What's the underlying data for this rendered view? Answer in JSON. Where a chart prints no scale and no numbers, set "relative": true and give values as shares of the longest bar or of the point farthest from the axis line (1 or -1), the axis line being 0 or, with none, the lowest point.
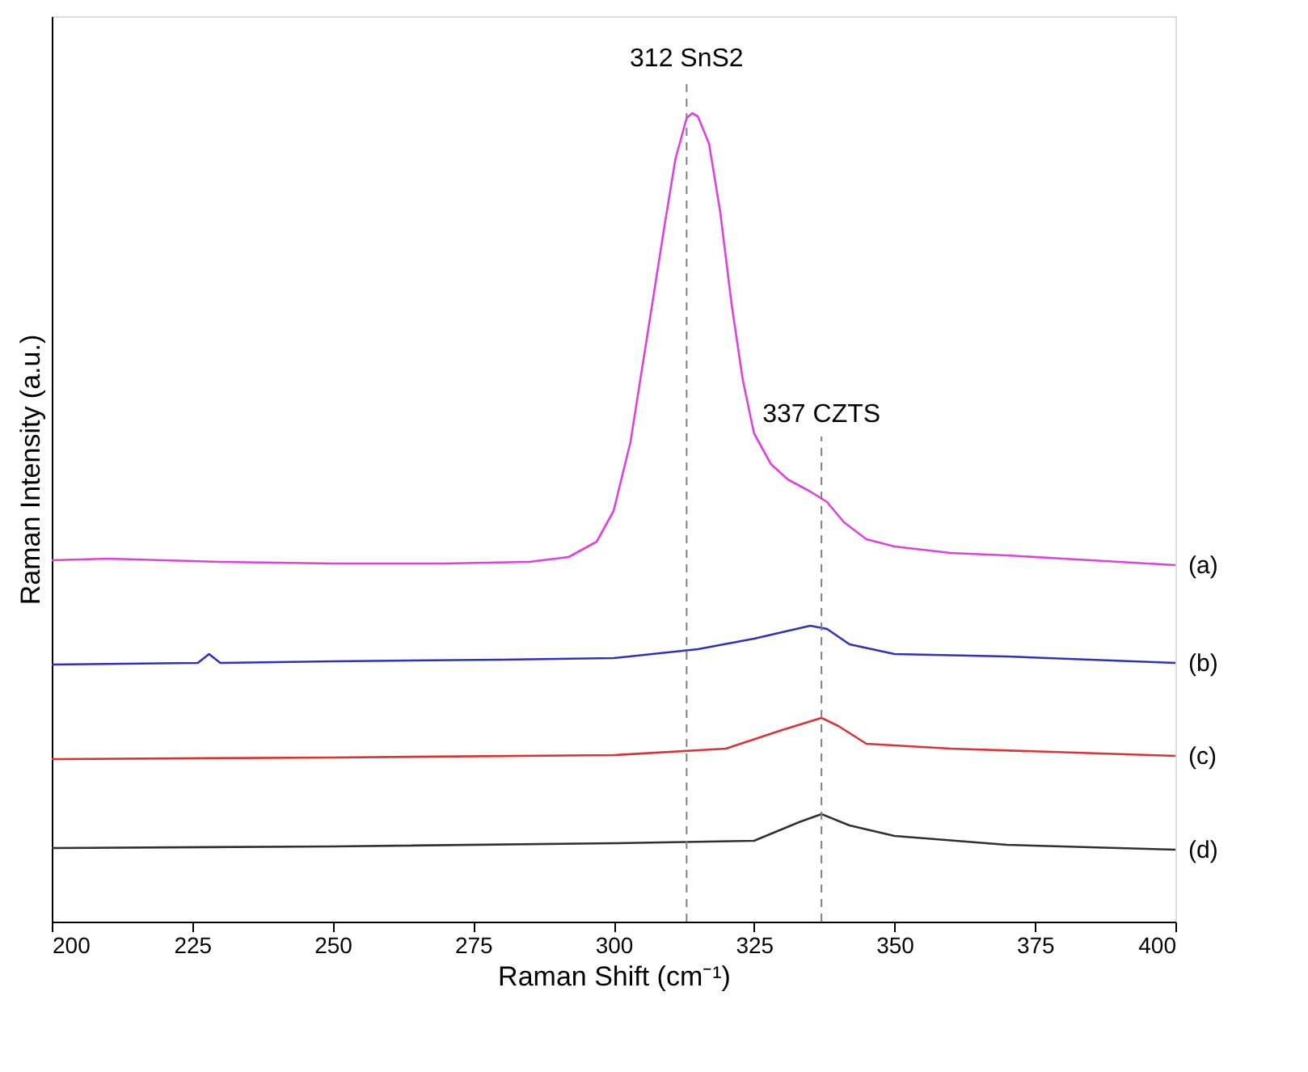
{
  "chart_data": {
    "type": "line",
    "relative": true,
    "xlabel": "Raman Shift (cm⁻¹)",
    "ylabel": "Raman Intensity (a.u.)",
    "xlim": [
      200,
      400
    ],
    "xticks": [
      200,
      225,
      250,
      275,
      300,
      325,
      350,
      375,
      400
    ],
    "grid": false,
    "marker": "none",
    "line_style": "solid",
    "x": [
      200,
      210,
      230,
      250,
      270,
      285,
      292,
      297,
      300,
      303,
      306,
      309,
      311,
      313,
      314,
      315,
      317,
      319,
      321,
      323,
      325,
      328,
      331,
      335,
      338,
      341,
      345,
      350,
      360,
      370,
      380,
      390,
      400
    ],
    "series": [
      {
        "name": "(a)",
        "color": "#e040e0",
        "values": [
          0.447,
          0.449,
          0.445,
          0.443,
          0.443,
          0.445,
          0.451,
          0.47,
          0.508,
          0.593,
          0.725,
          0.858,
          0.943,
          0.994,
          1.0,
          0.996,
          0.962,
          0.877,
          0.764,
          0.67,
          0.604,
          0.566,
          0.547,
          0.532,
          0.519,
          0.494,
          0.473,
          0.464,
          0.456,
          0.453,
          0.449,
          0.445,
          0.441
        ]
      },
      {
        "name": "(b)",
        "color": "#3030c0",
        "x": [
          200,
          226,
          228,
          230,
          250,
          280,
          300,
          315,
          325,
          335,
          338,
          342,
          350,
          370,
          400
        ],
        "values": [
          0.318,
          0.32,
          0.331,
          0.32,
          0.322,
          0.324,
          0.326,
          0.337,
          0.35,
          0.366,
          0.362,
          0.343,
          0.331,
          0.328,
          0.32
        ]
      },
      {
        "name": "(c)",
        "color": "#e03030",
        "x": [
          200,
          250,
          300,
          320,
          330,
          337,
          340,
          345,
          360,
          400
        ],
        "values": [
          0.201,
          0.203,
          0.206,
          0.214,
          0.237,
          0.252,
          0.242,
          0.22,
          0.214,
          0.205
        ]
      },
      {
        "name": "(d)",
        "color": "#303030",
        "x": [
          200,
          250,
          300,
          325,
          333,
          337,
          342,
          350,
          370,
          400
        ],
        "values": [
          0.091,
          0.093,
          0.097,
          0.1,
          0.123,
          0.133,
          0.119,
          0.106,
          0.095,
          0.089
        ]
      }
    ],
    "ref_lines": [
      {
        "axis": "x",
        "value": 313,
        "label": "312 SnS2",
        "color": "#808080",
        "line_style": "dashed"
      },
      {
        "axis": "x",
        "value": 337,
        "label": "337 CZTS",
        "color": "#808080",
        "line_style": "dashed"
      }
    ]
  }
}
